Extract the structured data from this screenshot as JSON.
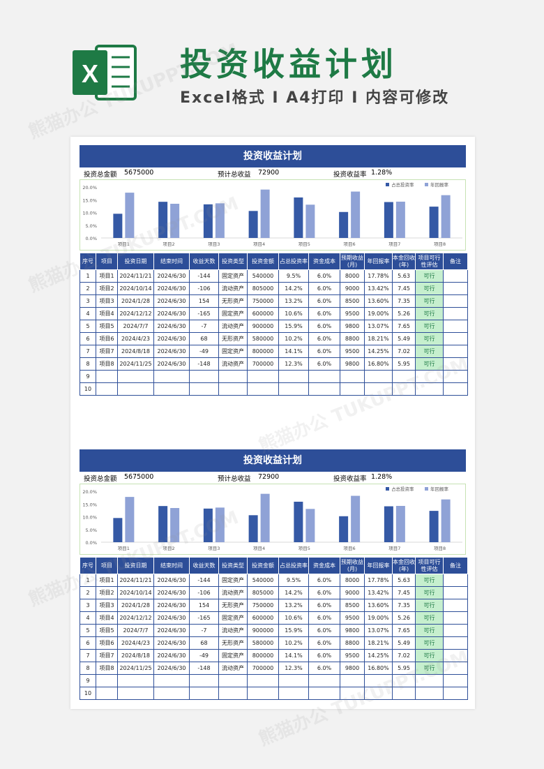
{
  "hero": {
    "title": "投资收益计划",
    "subtitle": "Excel格式 I A4打印 I 内容可修改",
    "logo_letter": "X",
    "watermark": "熊猫办公 TUKUPPT.COM"
  },
  "colors": {
    "brand_green": "#1e7a45",
    "header_blue": "#2d4e98",
    "series_dark": "#3559a5",
    "series_light": "#8fa2d6",
    "feasible_fill": "#c6efce",
    "chart_border": "#c6e2b3"
  },
  "sheet": {
    "title": "投资收益计划",
    "summary": {
      "total_label": "投资总金额",
      "total_value": "5675000",
      "income_label": "预计总收益",
      "income_value": "72900",
      "rate_label": "投资收益率",
      "rate_value": "1.28%"
    },
    "columns": [
      "序号",
      "项目",
      "投资日期",
      "结束时间",
      "收益天数",
      "投资类型",
      "投资金额",
      "占总投资率",
      "资金成本",
      "预期收益(月)",
      "年回报率",
      "本金回收(年)",
      "项目可行性评估",
      "备注"
    ],
    "rows": [
      [
        "1",
        "项目1",
        "2024/11/21",
        "2024/6/30",
        "-144",
        "固定资产",
        "540000",
        "9.5%",
        "6.0%",
        "8000",
        "17.78%",
        "5.63",
        "可行",
        ""
      ],
      [
        "2",
        "项目2",
        "2024/10/14",
        "2024/6/30",
        "-106",
        "流动资产",
        "805000",
        "14.2%",
        "6.0%",
        "9000",
        "13.42%",
        "7.45",
        "可行",
        ""
      ],
      [
        "3",
        "项目3",
        "2024/1/28",
        "2024/6/30",
        "154",
        "无形资产",
        "750000",
        "13.2%",
        "6.0%",
        "8500",
        "13.60%",
        "7.35",
        "可行",
        ""
      ],
      [
        "4",
        "项目4",
        "2024/12/12",
        "2024/6/30",
        "-165",
        "固定资产",
        "600000",
        "10.6%",
        "6.0%",
        "9500",
        "19.00%",
        "5.26",
        "可行",
        ""
      ],
      [
        "5",
        "项目5",
        "2024/7/7",
        "2024/6/30",
        "-7",
        "流动资产",
        "900000",
        "15.9%",
        "6.0%",
        "9800",
        "13.07%",
        "7.65",
        "可行",
        ""
      ],
      [
        "6",
        "项目6",
        "2024/4/23",
        "2024/6/30",
        "68",
        "无形资产",
        "580000",
        "10.2%",
        "6.0%",
        "8800",
        "18.21%",
        "5.49",
        "可行",
        ""
      ],
      [
        "7",
        "项目7",
        "2024/8/18",
        "2024/6/30",
        "-49",
        "固定资产",
        "800000",
        "14.1%",
        "6.0%",
        "9500",
        "14.25%",
        "7.02",
        "可行",
        ""
      ],
      [
        "8",
        "项目8",
        "2024/11/25",
        "2024/6/30",
        "-148",
        "流动资产",
        "700000",
        "12.3%",
        "6.0%",
        "9800",
        "16.80%",
        "5.95",
        "可行",
        ""
      ],
      [
        "9",
        "",
        "",
        "",
        "",
        "",
        "",
        "",
        "",
        "",
        "",
        "",
        "",
        ""
      ],
      [
        "10",
        "",
        "",
        "",
        "",
        "",
        "",
        "",
        "",
        "",
        "",
        "",
        "",
        ""
      ]
    ]
  },
  "chart_data": {
    "type": "bar",
    "categories": [
      "项目1",
      "项目2",
      "项目3",
      "项目4",
      "项目5",
      "项目6",
      "项目7",
      "项目8"
    ],
    "series": [
      {
        "name": "占总投资率",
        "values": [
          9.5,
          14.2,
          13.2,
          10.6,
          15.9,
          10.2,
          14.1,
          12.3
        ]
      },
      {
        "name": "年回报率",
        "values": [
          17.78,
          13.42,
          13.6,
          19.0,
          13.07,
          18.21,
          14.25,
          16.8
        ]
      }
    ],
    "y_ticks": [
      "0.0%",
      "5.0%",
      "10.0%",
      "15.0%",
      "20.0%"
    ],
    "ylim": [
      0,
      20
    ],
    "legend": "top-right",
    "grid": false
  }
}
